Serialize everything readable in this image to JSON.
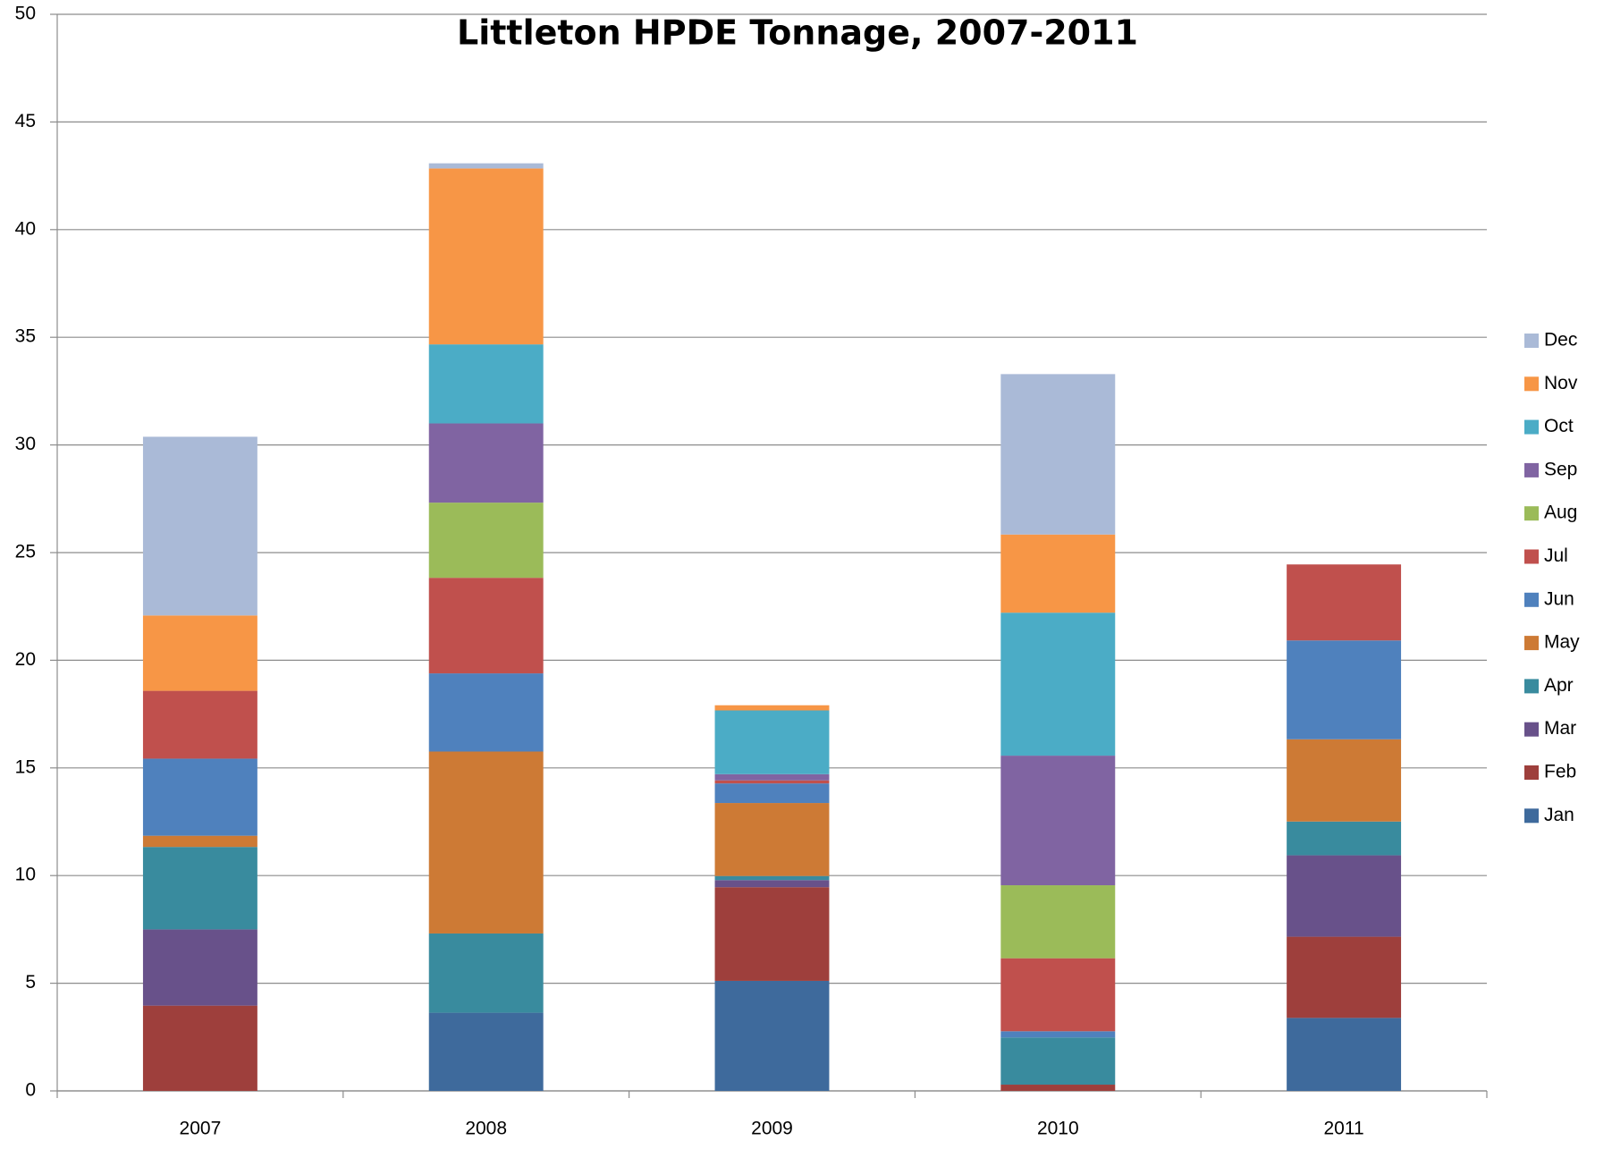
{
  "chart_data": {
    "type": "stacked_bar",
    "title": "Littleton HPDE Tonnage, 2007-2011",
    "categories": [
      "2007",
      "2008",
      "2009",
      "2010",
      "2011"
    ],
    "series": [
      {
        "name": "Jan",
        "color": "#3e6a9c",
        "values": [
          0,
          3.63,
          5.11,
          0,
          3.39
        ]
      },
      {
        "name": "Feb",
        "color": "#9e3f3c",
        "values": [
          3.96,
          0,
          4.35,
          0.29,
          3.77
        ]
      },
      {
        "name": "Mar",
        "color": "#68518a",
        "values": [
          3.54,
          0,
          0.33,
          0,
          3.78
        ]
      },
      {
        "name": "Apr",
        "color": "#398b9e",
        "values": [
          3.83,
          3.68,
          0.19,
          2.19,
          1.57
        ]
      },
      {
        "name": "May",
        "color": "#cd7a35",
        "values": [
          0.52,
          8.45,
          3.39,
          0,
          3.82
        ]
      },
      {
        "name": "Jun",
        "color": "#4f81bd",
        "values": [
          3.58,
          3.63,
          0.91,
          0.29,
          4.59
        ]
      },
      {
        "name": "Jul",
        "color": "#c0504d",
        "values": [
          3.15,
          4.44,
          0.14,
          3.39,
          3.53
        ]
      },
      {
        "name": "Aug",
        "color": "#9bbb59",
        "values": [
          0,
          3.49,
          0,
          3.39,
          0
        ]
      },
      {
        "name": "Sep",
        "color": "#8064a2",
        "values": [
          0,
          3.68,
          0.29,
          6.02,
          0
        ]
      },
      {
        "name": "Oct",
        "color": "#4bacc6",
        "values": [
          0,
          3.67,
          2.96,
          6.64,
          0
        ]
      },
      {
        "name": "Nov",
        "color": "#f79646",
        "values": [
          3.5,
          8.17,
          0.24,
          3.63,
          0
        ]
      },
      {
        "name": "Dec",
        "color": "#aabad7",
        "values": [
          8.3,
          0.24,
          0,
          7.45,
          0
        ]
      }
    ],
    "ylim": [
      0,
      50
    ],
    "yticks": [
      0,
      5,
      10,
      15,
      20,
      25,
      30,
      35,
      40,
      45,
      50
    ],
    "grid": true,
    "legend": "right"
  }
}
